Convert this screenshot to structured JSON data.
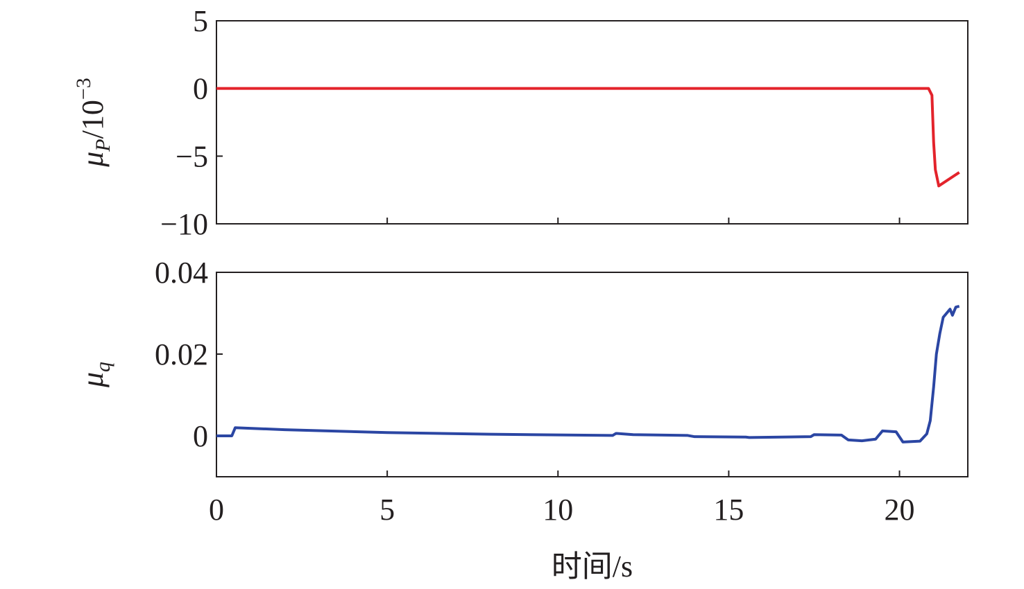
{
  "chart_data": [
    {
      "type": "line",
      "ylabel": "μ",
      "ylabel_sub": "P",
      "ylabel_unit": "/10",
      "ylabel_sup": "−3",
      "xlim": [
        0,
        22
      ],
      "xticks": [
        0,
        5,
        10,
        15,
        20
      ],
      "ylim": [
        -10,
        5
      ],
      "yticks": [
        {
          "value": -10,
          "label": "−10"
        },
        {
          "value": -5,
          "label": "−5"
        },
        0,
        5
      ],
      "color": "#e3232b",
      "x": [
        0,
        20.85,
        20.95,
        21.0,
        21.05,
        21.15,
        21.75
      ],
      "values": [
        0,
        0,
        -0.5,
        -4,
        -6.0,
        -7.2,
        -6.2
      ]
    },
    {
      "type": "line",
      "ylabel": "μ",
      "ylabel_sub": "q",
      "xlabel": "时间/s",
      "xlim": [
        0,
        22
      ],
      "xticks": [
        0,
        5,
        10,
        15,
        20
      ],
      "ylim": [
        -0.01,
        0.04
      ],
      "yticks": [
        0,
        0.02,
        0.04
      ],
      "color": "#2b46a3",
      "x": [
        0,
        0.45,
        0.55,
        2,
        5,
        8,
        11.6,
        11.7,
        12.2,
        13.8,
        14.0,
        15.5,
        15.6,
        17.4,
        17.5,
        18.3,
        18.5,
        18.9,
        19.3,
        19.5,
        19.9,
        20.1,
        20.6,
        20.8,
        20.9,
        21.0,
        21.08,
        21.18,
        21.28,
        21.38,
        21.48,
        21.55,
        21.65,
        21.75
      ],
      "values": [
        0,
        0,
        0.002,
        0.0015,
        0.0008,
        0.0004,
        0.0001,
        0.0006,
        0.0003,
        0.0001,
        -0.0002,
        -0.0003,
        -0.0004,
        -0.0002,
        0.0003,
        0.0002,
        -0.001,
        -0.0012,
        -0.0008,
        0.0012,
        0.001,
        -0.0015,
        -0.0013,
        0.0005,
        0.0037,
        0.012,
        0.02,
        0.025,
        0.029,
        0.03,
        0.031,
        0.0295,
        0.0315,
        0.0317
      ]
    }
  ]
}
